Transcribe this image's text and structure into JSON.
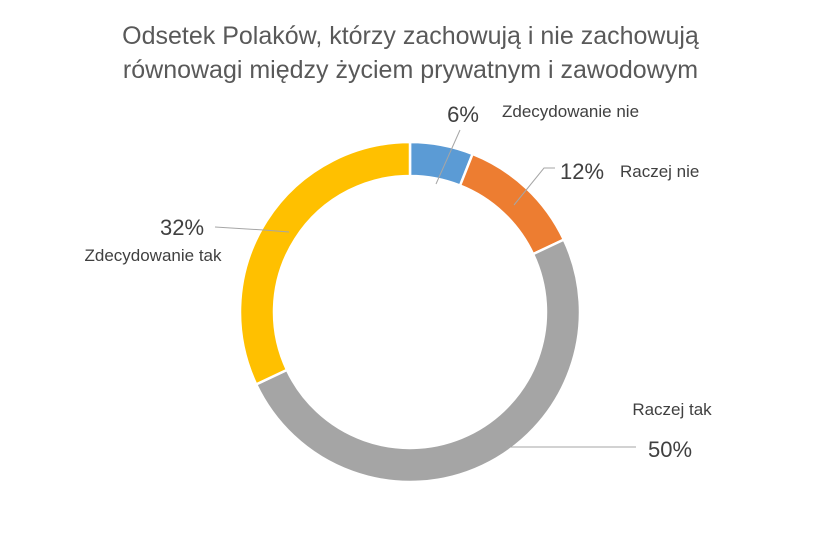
{
  "chart_data": {
    "type": "pie",
    "variant": "doughnut",
    "title_lines": [
      "Odsetek Polaków, którzy zachowują i nie zachowują",
      "równowagi między życiem prywatnym i zawodowym"
    ],
    "slices": [
      {
        "label": "Zdecydowanie nie",
        "value": 6,
        "value_label": "6%",
        "color": "#5B9BD5"
      },
      {
        "label": "Raczej nie",
        "value": 12,
        "value_label": "12%",
        "color": "#ED7D31"
      },
      {
        "label": "Raczej tak",
        "value": 50,
        "value_label": "50%",
        "color": "#A5A5A5"
      },
      {
        "label": "Zdecydowanie tak",
        "value": 32,
        "value_label": "32%",
        "color": "#FFC000"
      }
    ],
    "legend": "none"
  }
}
